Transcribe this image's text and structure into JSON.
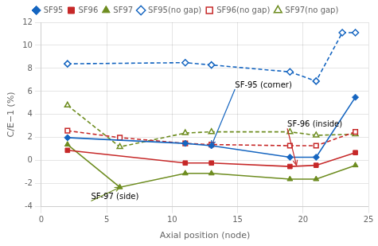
{
  "chart_data": {
    "type": "line",
    "xlabel": "Axial position (node)",
    "ylabel": "C/E−1 (%)",
    "xlim": [
      0,
      25
    ],
    "ylim": [
      -4,
      12
    ],
    "xticks": [
      0,
      5,
      10,
      15,
      20,
      25
    ],
    "yticks": [
      -4,
      -2,
      0,
      2,
      4,
      6,
      8,
      10,
      12
    ],
    "grid": true,
    "legend": "top",
    "series": [
      {
        "name": "SF95",
        "color": "#1565c0",
        "marker": "diamond",
        "line_style": "solid",
        "x": [
          2,
          11,
          13,
          19,
          21,
          24
        ],
        "values": [
          2.0,
          1.5,
          1.3,
          0.3,
          0.3,
          5.5
        ]
      },
      {
        "name": "SF96",
        "color": "#c62828",
        "marker": "square",
        "line_style": "solid",
        "x": [
          2,
          11,
          13,
          19,
          21,
          24
        ],
        "values": [
          0.9,
          -0.2,
          -0.2,
          -0.5,
          -0.4,
          0.7
        ]
      },
      {
        "name": "SF97",
        "color": "#6d8c1f",
        "marker": "triangle",
        "line_style": "solid",
        "x": [
          2,
          6,
          11,
          13,
          19,
          21,
          24
        ],
        "values": [
          1.4,
          -2.3,
          -1.1,
          -1.1,
          -1.6,
          -1.6,
          -0.4
        ]
      },
      {
        "name": "SF95(no gap)",
        "color": "#1565c0",
        "marker": "diamond",
        "line_style": "dashed",
        "x": [
          2,
          11,
          13,
          19,
          21,
          23,
          24
        ],
        "values": [
          8.4,
          8.5,
          8.3,
          7.7,
          6.9,
          11.1,
          11.1
        ]
      },
      {
        "name": "SF96(no gap)",
        "color": "#c62828",
        "marker": "square",
        "line_style": "dashed",
        "x": [
          2,
          6,
          11,
          13,
          19,
          21,
          24
        ],
        "values": [
          2.6,
          2.0,
          1.5,
          1.4,
          1.3,
          1.3,
          2.5
        ]
      },
      {
        "name": "SF97(no gap)",
        "color": "#6d8c1f",
        "marker": "triangle",
        "line_style": "dashed",
        "x": [
          2,
          6,
          11,
          13,
          19,
          21,
          24
        ],
        "values": [
          4.8,
          1.2,
          2.4,
          2.5,
          2.5,
          2.2,
          2.3
        ]
      }
    ],
    "annotations": [
      {
        "text": "SF-95 (corner)",
        "x": 13.0,
        "y": 1.3,
        "text_x": 14.8,
        "text_y": 6.2,
        "color": "#1565c0"
      },
      {
        "text": "SF-96 (inside)",
        "x": 19.5,
        "y": -0.4,
        "text_x": 18.8,
        "text_y": 2.8,
        "color": "#c62828"
      },
      {
        "text": "SF-97 (side)",
        "x": 6.0,
        "y": -2.3,
        "text_x": 3.8,
        "text_y": -3.5,
        "color": "#6d8c1f"
      }
    ]
  }
}
